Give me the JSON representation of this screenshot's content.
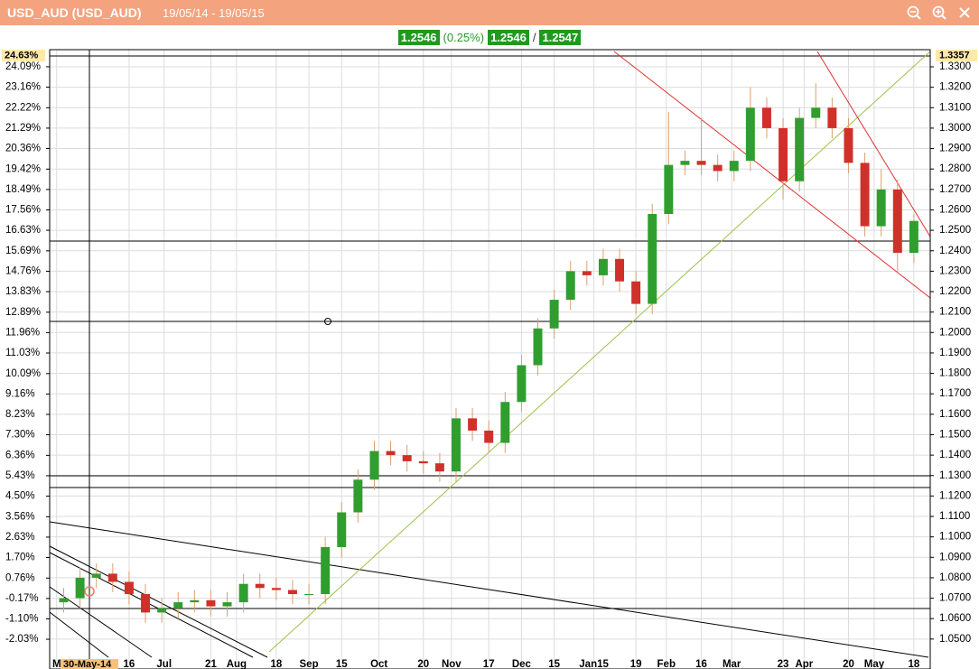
{
  "chart_data": {
    "type": "candlestick",
    "title": "USD_AUD (USD_AUD)",
    "subtitle": "19/05/14 - 19/05/15",
    "quote": {
      "last": "1.2546",
      "change": "(0.25%)",
      "bid": "1.2546",
      "separator": "/",
      "ask": "1.2547"
    },
    "crosshair": {
      "percent_label": "24.63%",
      "price_label": "1.3357",
      "date_label": "30-May-14"
    },
    "up_color": "#2f9e2f",
    "down_color": "#d0302a",
    "x": [
      0,
      7,
      14,
      21,
      28,
      35,
      42,
      49,
      56,
      63,
      70,
      77,
      84,
      91,
      98,
      105,
      112,
      119,
      126,
      133,
      140,
      147,
      154,
      161,
      168,
      175,
      182,
      189,
      196,
      203,
      210,
      217,
      224,
      231,
      238,
      245,
      252,
      259,
      266,
      273,
      280,
      287,
      294,
      301,
      308,
      315,
      322,
      329,
      336,
      343,
      350,
      357,
      364
    ],
    "open": [
      1.068,
      1.07,
      1.08,
      1.082,
      1.078,
      1.072,
      1.063,
      1.065,
      1.068,
      1.069,
      1.066,
      1.068,
      1.077,
      1.075,
      1.074,
      1.072,
      1.072,
      1.095,
      1.112,
      1.128,
      1.142,
      1.14,
      1.137,
      1.136,
      1.132,
      1.158,
      1.152,
      1.146,
      1.166,
      1.184,
      1.202,
      1.216,
      1.23,
      1.228,
      1.236,
      1.225,
      1.214,
      1.258,
      1.282,
      1.284,
      1.282,
      1.279,
      1.284,
      1.31,
      1.3,
      1.274,
      1.305,
      1.31,
      1.3,
      1.283,
      1.252,
      1.27,
      1.239
    ],
    "high": [
      1.075,
      1.085,
      1.087,
      1.087,
      1.083,
      1.077,
      1.07,
      1.073,
      1.074,
      1.074,
      1.073,
      1.082,
      1.082,
      1.08,
      1.079,
      1.077,
      1.1,
      1.117,
      1.133,
      1.147,
      1.147,
      1.145,
      1.142,
      1.141,
      1.163,
      1.163,
      1.157,
      1.171,
      1.189,
      1.207,
      1.221,
      1.235,
      1.235,
      1.241,
      1.241,
      1.23,
      1.263,
      1.308,
      1.289,
      1.305,
      1.287,
      1.289,
      1.32,
      1.315,
      1.305,
      1.31,
      1.322,
      1.315,
      1.305,
      1.288,
      1.28,
      1.275,
      1.258
    ],
    "low": [
      1.063,
      1.065,
      1.075,
      1.073,
      1.067,
      1.058,
      1.058,
      1.06,
      1.063,
      1.061,
      1.061,
      1.063,
      1.07,
      1.069,
      1.067,
      1.067,
      1.067,
      1.09,
      1.107,
      1.123,
      1.135,
      1.132,
      1.131,
      1.127,
      1.127,
      1.147,
      1.141,
      1.141,
      1.161,
      1.179,
      1.197,
      1.211,
      1.223,
      1.223,
      1.22,
      1.209,
      1.209,
      1.253,
      1.277,
      1.277,
      1.274,
      1.274,
      1.279,
      1.295,
      1.265,
      1.269,
      1.3,
      1.295,
      1.278,
      1.247,
      1.247,
      1.23,
      1.234
    ],
    "close": [
      1.07,
      1.08,
      1.082,
      1.078,
      1.072,
      1.063,
      1.065,
      1.068,
      1.069,
      1.066,
      1.068,
      1.077,
      1.075,
      1.074,
      1.072,
      1.072,
      1.095,
      1.112,
      1.128,
      1.142,
      1.14,
      1.137,
      1.136,
      1.132,
      1.158,
      1.152,
      1.146,
      1.166,
      1.184,
      1.202,
      1.216,
      1.23,
      1.228,
      1.236,
      1.225,
      1.214,
      1.258,
      1.282,
      1.284,
      1.282,
      1.279,
      1.284,
      1.31,
      1.3,
      1.274,
      1.305,
      1.31,
      1.3,
      1.283,
      1.252,
      1.27,
      1.239,
      1.2546
    ],
    "xlim": [
      -6,
      371
    ],
    "xticks": [
      {
        "value": -3,
        "label": "M"
      },
      {
        "value": 28,
        "label": "16"
      },
      {
        "value": 43,
        "label": "Jul"
      },
      {
        "value": 63,
        "label": "21"
      },
      {
        "value": 74,
        "label": "Aug"
      },
      {
        "value": 91,
        "label": "18"
      },
      {
        "value": 105,
        "label": "Sep"
      },
      {
        "value": 119,
        "label": "15"
      },
      {
        "value": 135,
        "label": "Oct"
      },
      {
        "value": 154,
        "label": "20"
      },
      {
        "value": 166,
        "label": "Nov"
      },
      {
        "value": 182,
        "label": "17"
      },
      {
        "value": 196,
        "label": "Dec"
      },
      {
        "value": 210,
        "label": "15"
      },
      {
        "value": 227,
        "label": "Jan15"
      },
      {
        "value": 245,
        "label": "19"
      },
      {
        "value": 258,
        "label": "Feb"
      },
      {
        "value": 273,
        "label": "16"
      },
      {
        "value": 286,
        "label": "Mar"
      },
      {
        "value": 308,
        "label": "23"
      },
      {
        "value": 317,
        "label": "Apr"
      },
      {
        "value": 336,
        "label": "20"
      },
      {
        "value": 347,
        "label": "May"
      },
      {
        "value": 364,
        "label": "18"
      }
    ],
    "ylim": [
      1.038,
      1.3384
    ],
    "yticks": [
      {
        "value": 1.33,
        "label": "1.3300"
      },
      {
        "value": 1.32,
        "label": "1.3200"
      },
      {
        "value": 1.31,
        "label": "1.3100"
      },
      {
        "value": 1.3,
        "label": "1.3000"
      },
      {
        "value": 1.29,
        "label": "1.2900"
      },
      {
        "value": 1.28,
        "label": "1.2800"
      },
      {
        "value": 1.27,
        "label": "1.2700"
      },
      {
        "value": 1.26,
        "label": "1.2600"
      },
      {
        "value": 1.25,
        "label": "1.2500"
      },
      {
        "value": 1.24,
        "label": "1.2400"
      },
      {
        "value": 1.23,
        "label": "1.2300"
      },
      {
        "value": 1.22,
        "label": "1.2200"
      },
      {
        "value": 1.21,
        "label": "1.2100"
      },
      {
        "value": 1.2,
        "label": "1.2000"
      },
      {
        "value": 1.19,
        "label": "1.1900"
      },
      {
        "value": 1.18,
        "label": "1.1800"
      },
      {
        "value": 1.17,
        "label": "1.1700"
      },
      {
        "value": 1.16,
        "label": "1.1600"
      },
      {
        "value": 1.15,
        "label": "1.1500"
      },
      {
        "value": 1.14,
        "label": "1.1400"
      },
      {
        "value": 1.13,
        "label": "1.1300"
      },
      {
        "value": 1.12,
        "label": "1.1200"
      },
      {
        "value": 1.11,
        "label": "1.1100"
      },
      {
        "value": 1.1,
        "label": "1.1000"
      },
      {
        "value": 1.09,
        "label": "1.0900"
      },
      {
        "value": 1.08,
        "label": "1.0800"
      },
      {
        "value": 1.07,
        "label": "1.0700"
      },
      {
        "value": 1.06,
        "label": "1.0600"
      },
      {
        "value": 1.05,
        "label": "1.0500"
      }
    ],
    "y2lim": [
      -3.14,
      24.87
    ],
    "y2ticks": [
      {
        "value": 24.09,
        "label": "24.09%"
      },
      {
        "value": 23.16,
        "label": "23.16%"
      },
      {
        "value": 22.22,
        "label": "22.22%"
      },
      {
        "value": 21.29,
        "label": "21.29%"
      },
      {
        "value": 20.36,
        "label": "20.36%"
      },
      {
        "value": 19.42,
        "label": "19.42%"
      },
      {
        "value": 18.49,
        "label": "18.49%"
      },
      {
        "value": 17.56,
        "label": "17.56%"
      },
      {
        "value": 16.63,
        "label": "16.63%"
      },
      {
        "value": 15.69,
        "label": "15.69%"
      },
      {
        "value": 14.76,
        "label": "14.76%"
      },
      {
        "value": 13.83,
        "label": "13.83%"
      },
      {
        "value": 12.89,
        "label": "12.89%"
      },
      {
        "value": 11.96,
        "label": "11.96%"
      },
      {
        "value": 11.03,
        "label": "11.03%"
      },
      {
        "value": 10.09,
        "label": "10.09%"
      },
      {
        "value": 9.16,
        "label": "9.16%"
      },
      {
        "value": 8.23,
        "label": "8.23%"
      },
      {
        "value": 7.3,
        "label": "7.30%"
      },
      {
        "value": 6.36,
        "label": "6.36%"
      },
      {
        "value": 5.43,
        "label": "5.43%"
      },
      {
        "value": 4.5,
        "label": "4.50%"
      },
      {
        "value": 3.56,
        "label": "3.56%"
      },
      {
        "value": 2.63,
        "label": "2.63%"
      },
      {
        "value": 1.7,
        "label": "1.70%"
      },
      {
        "value": 0.76,
        "label": "0.76%"
      },
      {
        "value": -0.17,
        "label": "-0.17%"
      },
      {
        "value": -1.1,
        "label": "-1.10%"
      },
      {
        "value": -2.03,
        "label": "-2.03%"
      }
    ],
    "grid": true
  }
}
